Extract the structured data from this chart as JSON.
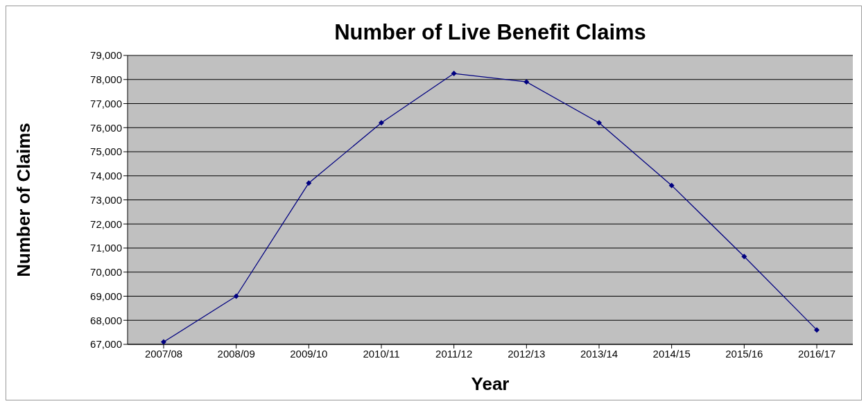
{
  "chart_data": {
    "type": "line",
    "title": "Number of Live Benefit Claims",
    "xlabel": "Year",
    "ylabel": "Number of Claims",
    "categories": [
      "2007/08",
      "2008/09",
      "2009/10",
      "2010/11",
      "2011/12",
      "2012/13",
      "2013/14",
      "2014/15",
      "2015/16",
      "2016/17"
    ],
    "series": [
      {
        "color": "#000080",
        "values": [
          67100,
          69000,
          73700,
          76200,
          78250,
          77900,
          76200,
          73600,
          70650,
          67600
        ]
      }
    ],
    "ylim": [
      67000,
      79000
    ],
    "yticks": [
      {
        "value": 67000,
        "label": "67,000"
      },
      {
        "value": 68000,
        "label": "68,000"
      },
      {
        "value": 69000,
        "label": "69,000"
      },
      {
        "value": 70000,
        "label": "70,000"
      },
      {
        "value": 71000,
        "label": "71,000"
      },
      {
        "value": 72000,
        "label": "72,000"
      },
      {
        "value": 73000,
        "label": "73,000"
      },
      {
        "value": 74000,
        "label": "74,000"
      },
      {
        "value": 75000,
        "label": "75,000"
      },
      {
        "value": 76000,
        "label": "76,000"
      },
      {
        "value": 77000,
        "label": "77,000"
      },
      {
        "value": 78000,
        "label": "78,000"
      },
      {
        "value": 79000,
        "label": "79,000"
      }
    ],
    "grid": "y",
    "marker": "diamond",
    "line_style": "solid",
    "legend": false
  }
}
